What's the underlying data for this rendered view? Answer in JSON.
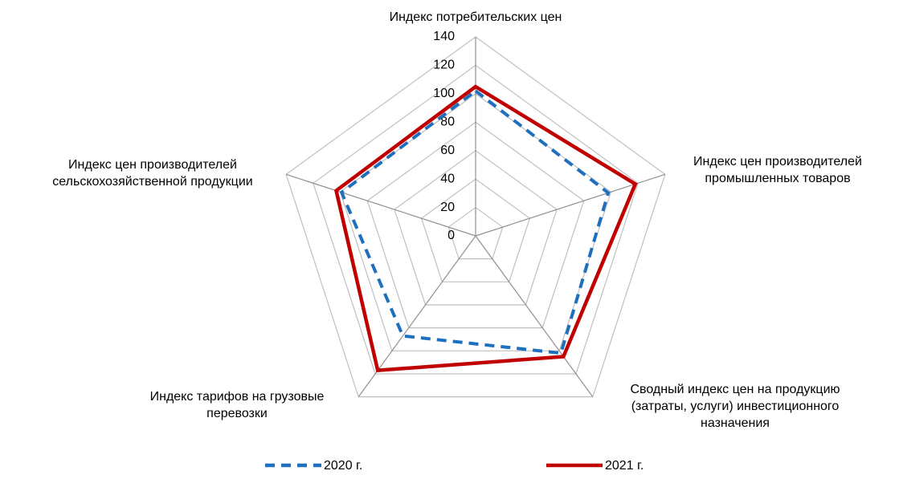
{
  "chart_data": {
    "type": "radar",
    "categories": [
      [
        "Индекс потребительских цен"
      ],
      [
        "Индекс цен производителей",
        "промышленных товаров"
      ],
      [
        "Сводный индекс цен на продукцию",
        "(затраты, услуги) инвестиционного",
        "назначения"
      ],
      [
        "Индекс тарифов на грузовые",
        "перевозки"
      ],
      [
        "Индекс цен производителей",
        "сельскохозяйственной продукции"
      ]
    ],
    "series": [
      {
        "name": "2020 г.",
        "color": "#1f6fbf",
        "dashed": true,
        "values": [
          102,
          98,
          102,
          87,
          99
        ]
      },
      {
        "name": "2021 г.",
        "color": "#c00000",
        "dashed": false,
        "values": [
          105,
          118,
          105,
          117,
          103
        ]
      }
    ],
    "ylim": [
      0,
      140
    ],
    "yticks": [
      0,
      20,
      40,
      60,
      80,
      100,
      120,
      140
    ],
    "grid": true
  }
}
